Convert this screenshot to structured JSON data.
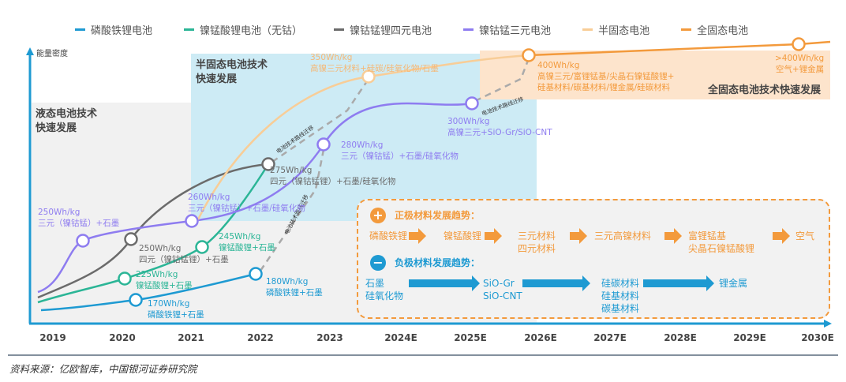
{
  "legend": [
    {
      "label": "磷酸铁锂电池",
      "color": "#1e9ad2"
    },
    {
      "label": "镍锰酸锂电池（无钴）",
      "color": "#2bb596"
    },
    {
      "label": "镍钴锰锂四元电池",
      "color": "#6b6b6b"
    },
    {
      "label": "镍钴锰三元电池",
      "color": "#8e7cf0"
    },
    {
      "label": "半固态电池",
      "color": "#f8cd97"
    },
    {
      "label": "全固态电池",
      "color": "#f39a3c"
    }
  ],
  "y_axis_label": "能量密度",
  "x_axis": [
    "2019",
    "2020",
    "2021",
    "2022",
    "2023",
    "2024E",
    "2025E",
    "2026E",
    "2027E",
    "2028E",
    "2029E",
    "2030E"
  ],
  "regions": {
    "liquid": "液态电池技术\n快速发展",
    "semi_solid": "半固态电池技术\n快速发展",
    "all_solid": "全固态电池技术快速发展"
  },
  "migration_label": "电池技术路线迁移",
  "milestones": [
    {
      "value": "250Wh/kg",
      "desc": "三元（镍钴锰）+石墨",
      "series": "镍钴锰三元电池"
    },
    {
      "value": "250Wh/kg",
      "desc": "四元（镍钴锰锂）+石墨",
      "series": "镍钴锰锂四元电池"
    },
    {
      "value": "225Wh/kg",
      "desc": "镍锰酸锂+石墨",
      "series": "镍锰酸锂电池（无钴）"
    },
    {
      "value": "170Wh/kg",
      "desc": "磷酸铁锂+石墨",
      "series": "磷酸铁锂电池"
    },
    {
      "value": "245Wh/kg",
      "desc": "镍锰酸锂+石墨",
      "series": "镍锰酸锂电池（无钴）"
    },
    {
      "value": "180Wh/kg",
      "desc": "磷酸铁锂+石墨",
      "series": "磷酸铁锂电池"
    },
    {
      "value": "260Wh/kg",
      "desc": "三元（镍钴锰）+石墨/硅氧化物",
      "series": "镍钴锰三元电池"
    },
    {
      "value": "275Wh/kg",
      "desc": "四元（镍钴锰锂）+石墨/硅氧化物",
      "series": "镍钴锰锂四元电池"
    },
    {
      "value": "280Wh/kg",
      "desc": "三元（镍钴锰）+石墨/硅氧化物",
      "series": "镍钴锰三元电池"
    },
    {
      "value": "300Wh/kg",
      "desc": "高镍三元+SiO-Gr/SiO-CNT",
      "series": "镍钴锰三元电池"
    },
    {
      "value": "350Wh/kg",
      "desc": "高镍三元材料+硅碳/硅氧化物/石墨",
      "series": "半固态电池"
    },
    {
      "value": "400Wh/kg",
      "desc": "高镍三元/富锂锰基/尖晶石镍锰酸锂+\n硅基材料/碳基材料/锂金属/硅碳材料",
      "series": "全固态电池"
    },
    {
      "value": ">400Wh/kg",
      "desc": "空气+锂金属",
      "series": "全固态电池"
    }
  ],
  "trends": {
    "cathode": {
      "title": "正极材料发展趋势：",
      "icon": "plus-icon",
      "color": "#f39a3c",
      "items": [
        "磷酸铁锂",
        "镍锰酸锂",
        "三元材料\n四元材料",
        "三元高镍材料",
        "富锂锰基\n尖晶石镍锰酸锂",
        "空气"
      ]
    },
    "anode": {
      "title": "负极材料发展趋势：",
      "icon": "minus-icon",
      "color": "#1e9ad2",
      "items": [
        "石墨\n硅氧化物",
        "SiO-Gr\nSiO-CNT",
        "硅碳材料\n硅基材料\n碳基材料",
        "锂金属"
      ]
    }
  },
  "source": "资料来源：亿欧智库，中国银河证券研究院"
}
